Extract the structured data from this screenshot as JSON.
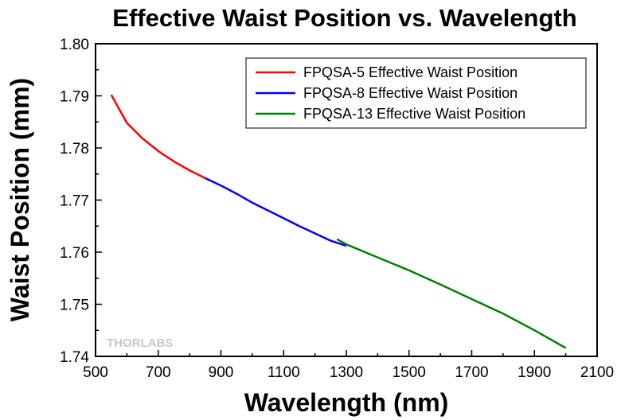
{
  "chart_data": {
    "type": "line",
    "title": "Effective Waist Position vs. Wavelength",
    "xlabel": "Wavelength (nm)",
    "ylabel": "Waist Position (mm)",
    "xlim": [
      500,
      2100
    ],
    "ylim": [
      1.74,
      1.8
    ],
    "xticks": [
      "500",
      "700",
      "900",
      "1100",
      "1300",
      "1500",
      "1700",
      "1900",
      "2100"
    ],
    "yticks": [
      "1.74",
      "1.75",
      "1.76",
      "1.77",
      "1.78",
      "1.79",
      "1.80"
    ],
    "grid": false,
    "legend_position": "top-right",
    "watermark": "THORLABS",
    "series": [
      {
        "name": "FPQSA-5 Effective Waist Position",
        "color": "#ff0000",
        "x": [
          550,
          600,
          650,
          700,
          750,
          800,
          850
        ],
        "y": [
          1.7902,
          1.7848,
          1.7818,
          1.7794,
          1.7774,
          1.7757,
          1.7742
        ]
      },
      {
        "name": "FPQSA-8 Effective Waist Position",
        "color": "#0000ff",
        "x": [
          850,
          900,
          950,
          1000,
          1050,
          1100,
          1150,
          1200,
          1250,
          1300
        ],
        "y": [
          1.7742,
          1.7728,
          1.7712,
          1.7695,
          1.768,
          1.7665,
          1.765,
          1.7636,
          1.7622,
          1.7612
        ]
      },
      {
        "name": "FPQSA-13 Effective Waist Position",
        "color": "#008000",
        "x": [
          1270,
          1300,
          1400,
          1500,
          1600,
          1700,
          1800,
          1900,
          2000
        ],
        "y": [
          1.7625,
          1.7615,
          1.759,
          1.7565,
          1.7538,
          1.751,
          1.7482,
          1.745,
          1.7416
        ]
      }
    ]
  }
}
